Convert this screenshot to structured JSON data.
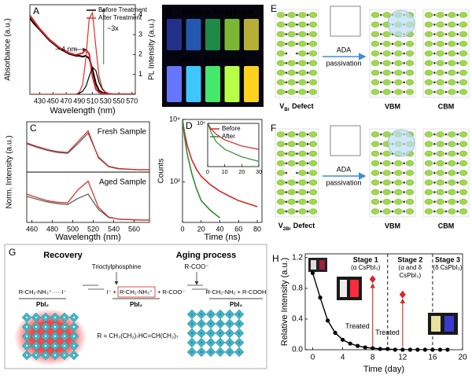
{
  "chart_data": [
    {
      "panel": "A",
      "type": "line",
      "xlabel": "Wavelength (nm)",
      "ylabel": "Absorbance (a.u.)",
      "y2label": "PL Intensity (a.u.)",
      "x": [
        415,
        420,
        425,
        430,
        435,
        440,
        445,
        450,
        455,
        460,
        465,
        470,
        475,
        480,
        485,
        490,
        495,
        500,
        505,
        510,
        515,
        520,
        525,
        530,
        535,
        540,
        545,
        550,
        555,
        560,
        565,
        570,
        575
      ],
      "xlim": [
        415,
        575
      ],
      "xticks": [
        430,
        450,
        470,
        490,
        510,
        530,
        550,
        570
      ],
      "ylim": [
        0,
        1
      ],
      "y2lim": [
        0,
        4.5
      ],
      "y2ticks": [
        1,
        2,
        3,
        4
      ],
      "legend": "upper right",
      "series": [
        {
          "color": "#000000",
          "style": "dots",
          "values": [
            0.85,
            0.8,
            0.76,
            0.72,
            0.68,
            0.64,
            0.6,
            0.57,
            0.54,
            0.51,
            0.49,
            0.47,
            0.45,
            0.44,
            0.43,
            0.43,
            0.42,
            0.43,
            0.4,
            0.28,
            0.12,
            0.04,
            0.02,
            0.01,
            0,
            0,
            0,
            0,
            0,
            0,
            0,
            0,
            0
          ]
        },
        {
          "color": "#d62728",
          "style": "dots",
          "values": [
            0.88,
            0.83,
            0.78,
            0.73,
            0.69,
            0.65,
            0.61,
            0.58,
            0.55,
            0.52,
            0.5,
            0.48,
            0.46,
            0.45,
            0.44,
            0.45,
            0.46,
            0.5,
            0.45,
            0.2,
            0.06,
            0.02,
            0.01,
            0,
            0,
            0,
            0,
            0,
            0,
            0,
            0,
            0,
            0
          ]
        },
        {
          "name": "Before Treatment",
          "color": "#000000",
          "axis": "y2",
          "values": [
            0,
            0,
            0,
            0,
            0,
            0,
            0,
            0,
            0,
            0,
            0,
            0,
            0,
            0,
            0,
            0.05,
            0.15,
            0.4,
            0.9,
            1.35,
            1.2,
            0.6,
            0.25,
            0.1,
            0.04,
            0.02,
            0,
            0,
            0,
            0,
            0,
            0,
            0
          ]
        },
        {
          "name": "After Treatment",
          "color": "#e0302a",
          "axis": "y2",
          "values": [
            0,
            0,
            0,
            0,
            0,
            0,
            0,
            0,
            0,
            0,
            0,
            0,
            0,
            0,
            0,
            0.1,
            0.5,
            1.8,
            3.8,
            4.1,
            2.4,
            0.9,
            0.3,
            0.1,
            0.04,
            0.02,
            0,
            0,
            0,
            0,
            0,
            0,
            0
          ]
        }
      ],
      "annotations": [
        "~ 4 nm",
        "~3x"
      ]
    },
    {
      "panel": "C",
      "type": "line",
      "xlabel": "Wavelength (nm)",
      "ylabel": "Norm. Intensity (a.u.)",
      "x": [
        455,
        465,
        475,
        485,
        495,
        505,
        515,
        525,
        535,
        545,
        555,
        565,
        575
      ],
      "xlim": [
        455,
        575
      ],
      "xticks": [
        460,
        480,
        500,
        520,
        540,
        560
      ],
      "ylim": [
        0,
        1
      ],
      "subplots": [
        {
          "annotation": "Fresh Sample",
          "series": [
            {
              "color": "#555555",
              "values": [
                0.6,
                0.52,
                0.45,
                0.4,
                0.38,
                0.6,
                0.85,
                0.3,
                0.08,
                0.03,
                0.01,
                0,
                0
              ]
            },
            {
              "color": "#d62728",
              "values": [
                0.62,
                0.54,
                0.47,
                0.42,
                0.4,
                0.65,
                0.9,
                0.28,
                0.07,
                0.02,
                0.01,
                0,
                0
              ]
            }
          ]
        },
        {
          "annotation": "Aged Sample",
          "series": [
            {
              "color": "#555555",
              "values": [
                0.55,
                0.48,
                0.42,
                0.38,
                0.36,
                0.5,
                0.6,
                0.25,
                0.06,
                0.02,
                0.01,
                0,
                0
              ]
            },
            {
              "color": "#d62728",
              "values": [
                0.6,
                0.52,
                0.45,
                0.41,
                0.4,
                0.7,
                0.9,
                0.3,
                0.07,
                0.02,
                0.01,
                0,
                0
              ]
            }
          ]
        }
      ]
    },
    {
      "panel": "D",
      "type": "line",
      "yscale": "log",
      "xlabel": "Time (ns)",
      "ylabel": "Counts",
      "x": [
        0,
        2,
        5,
        10,
        15,
        20,
        30,
        40,
        50,
        60,
        70,
        80
      ],
      "xlim": [
        0,
        85
      ],
      "xticks": [
        0,
        20,
        40,
        60,
        80
      ],
      "ylim": [
        5,
        10000
      ],
      "yticks": [
        {
          "value": 100,
          "label": "10²"
        },
        {
          "value": 10000,
          "label": "10⁴"
        }
      ],
      "legend": "upper right",
      "series": [
        {
          "name": "Before",
          "color": "#d62728",
          "values": [
            10000,
            4000,
            1500,
            500,
            250,
            150,
            80,
            50,
            35,
            25,
            20,
            16
          ]
        },
        {
          "name": "After",
          "color": "#2e8b3a",
          "values": [
            10000,
            3000,
            800,
            180,
            60,
            25,
            12,
            7,
            null,
            null,
            null,
            null
          ]
        }
      ],
      "inset": {
        "x": [
          0,
          2,
          5,
          10,
          20,
          30
        ],
        "xlim": [
          0,
          30
        ],
        "xticks": [
          0,
          10,
          20,
          30
        ],
        "ylim": [
          1,
          10000
        ],
        "yticks": [
          {
            "value": 10000,
            "label": "10⁴"
          }
        ],
        "series": [
          {
            "color": "#d62728",
            "values": [
              10000,
              3000,
              1000,
              300,
              80,
              40
            ]
          },
          {
            "color": "#2e8b3a",
            "values": [
              10000,
              1500,
              200,
              40,
              8,
              3
            ]
          }
        ]
      }
    },
    {
      "panel": "H",
      "type": "line",
      "xlabel": "Time (day)",
      "ylabel": "Relative Intensity (a.u.)",
      "x": [
        0,
        1,
        2,
        3,
        4,
        5,
        6,
        7,
        8,
        9,
        10,
        11,
        12,
        13,
        14,
        15,
        16,
        17,
        18
      ],
      "values": [
        1.0,
        0.68,
        0.38,
        0.22,
        0.13,
        0.08,
        0.05,
        0.03,
        0.02,
        0.01,
        0.01,
        0,
        0,
        0,
        0,
        0,
        0,
        0,
        0
      ],
      "color": "#000000",
      "xlim": [
        -1,
        20
      ],
      "xticks": [
        0,
        4,
        8,
        12,
        16,
        20
      ],
      "ylim": [
        0,
        1.25
      ],
      "yticks": [
        {
          "value": 0,
          "label": "0.0"
        },
        0.4,
        0.8,
        1.2
      ],
      "stage_boundaries": [
        10,
        16
      ],
      "stages": [
        [
          "Stage 1",
          "(α CsPbI₃)"
        ],
        [
          "Stage 2",
          "(α and δ",
          "CsPbI₃)"
        ],
        [
          "Stage 3",
          "(δ CsPbI₃)"
        ]
      ],
      "treated": {
        "x": [
          8,
          12
        ],
        "values": [
          0.92,
          0.72
        ],
        "label": "Treated",
        "color": "#d62728"
      }
    }
  ],
  "photo": {
    "panel": "B",
    "top_label": "Before Treatment",
    "bottom_label": "After Treatment"
  },
  "defect_diagrams": [
    {
      "panel": "E",
      "defect": {
        "symbol": "V",
        "subscript": "Br",
        "text": "Defect"
      },
      "arrow_label": [
        "ADA",
        "passivation"
      ],
      "bands": [
        "VBM",
        "CBM"
      ]
    },
    {
      "panel": "F",
      "defect": {
        "symbol": "V",
        "subscript": "2Br",
        "text": "Defect"
      },
      "arrow_label": [
        "ADA",
        "passivation"
      ],
      "bands": [
        "VBM",
        "CBM"
      ]
    }
  ],
  "scheme": {
    "panel": "G",
    "recovery": "Recovery",
    "aging": "Aging process",
    "reagent_left": "Trioctylphosphine",
    "reagent_right": "R-COO⁻",
    "left": "R-CH₂-NH₃⁺·····I⁻",
    "center": [
      "I⁻ +",
      "R-CH₂-NH₃⁺",
      "+ R-COO⁻"
    ],
    "right": "R-CH₂-NH₂ + R-COOH",
    "substrate": "PbI₂",
    "definition": "R = CH₃(CH₂)₇HC=CH(CH₂)₇"
  }
}
